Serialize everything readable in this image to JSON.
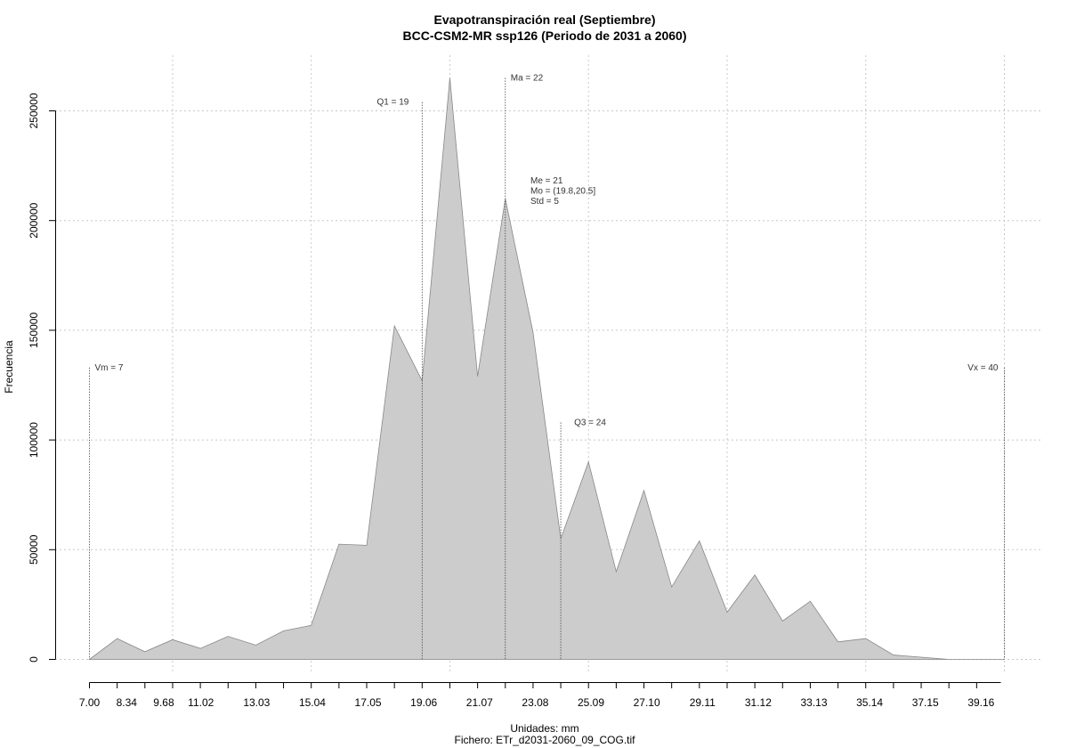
{
  "chart_data": {
    "type": "area",
    "title": "Evapotranspiración real (Septiembre)",
    "subtitle": "BCC-CSM2-MR ssp126 (Periodo de 2031 a 2060)",
    "xlabel": "Unidades: mm",
    "ylabel": "Frecuencia",
    "footer": "Fichero: ETr_d2031-2060_09_COG.tif",
    "xlim": [
      7.0,
      40.0
    ],
    "ylim": [
      0,
      265000
    ],
    "grid": true,
    "fill_color": "#cccccc",
    "line_color": "#888888",
    "x_ticks": [
      7.0,
      8.34,
      9.68,
      11.02,
      13.03,
      15.04,
      17.05,
      19.06,
      21.07,
      23.08,
      25.09,
      27.1,
      29.11,
      31.12,
      33.13,
      35.14,
      37.15,
      39.16
    ],
    "x_tick_labels": [
      "7.00",
      "8.34",
      "9.68",
      "11.02",
      "13.03",
      "15.04",
      "17.05",
      "19.06",
      "21.07",
      "23.08",
      "25.09",
      "27.10",
      "29.11",
      "31.12",
      "33.13",
      "35.14",
      "37.15",
      "39.16"
    ],
    "x_minor_ticks": [
      7.0,
      8.0,
      9.0,
      10.0,
      11.0,
      12.0,
      13.0,
      14.0,
      15.0,
      16.0,
      17.0,
      18.0,
      19.0,
      20.0,
      21.0,
      22.0,
      23.0,
      24.0,
      25.0,
      26.0,
      27.0,
      28.0,
      29.0,
      30.0,
      31.0,
      32.0,
      33.0,
      34.0,
      35.0,
      36.0,
      37.0,
      38.0,
      39.0,
      40.0
    ],
    "x_grid": [
      10.0,
      15.0,
      20.0,
      25.0,
      30.0,
      35.0,
      40.0
    ],
    "y_ticks": [
      0,
      50000,
      100000,
      150000,
      200000,
      250000
    ],
    "y_tick_labels": [
      "0",
      "50000",
      "100000",
      "150000",
      "200000",
      "250000"
    ],
    "x": [
      7.0,
      8.0,
      9.0,
      10.0,
      11.0,
      12.0,
      13.0,
      14.0,
      15.0,
      16.0,
      17.0,
      18.0,
      19.0,
      20.0,
      21.0,
      22.0,
      23.0,
      24.0,
      25.0,
      26.0,
      27.0,
      28.0,
      29.0,
      30.0,
      31.0,
      32.0,
      33.0,
      34.0,
      35.0,
      36.0,
      37.0,
      38.0,
      39.0,
      40.0
    ],
    "y": [
      0,
      9500,
      3500,
      9000,
      5000,
      10500,
      6500,
      13000,
      15500,
      52500,
      52000,
      152000,
      127000,
      265000,
      129000,
      210000,
      149000,
      55000,
      90000,
      40000,
      77000,
      33000,
      54000,
      21500,
      38500,
      17500,
      26500,
      8000,
      9500,
      2000,
      1000,
      0,
      0,
      0
    ],
    "markers": [
      {
        "label": "Vm = 7",
        "x": 7.0,
        "y_top": 133000
      },
      {
        "label": "Q1 = 19",
        "x": 19.0,
        "y_top": 254000
      },
      {
        "label": "Ma = 22",
        "x": 22.0,
        "y_top": 265000
      },
      {
        "label": "Q3 = 24",
        "x": 24.0,
        "y_top": 108000
      },
      {
        "label": "Vx = 40",
        "x": 40.0,
        "y_top": 133000
      }
    ],
    "stats_block": [
      "Me = 21",
      "Mo = (19.8,20.5]",
      "Std = 5"
    ]
  }
}
